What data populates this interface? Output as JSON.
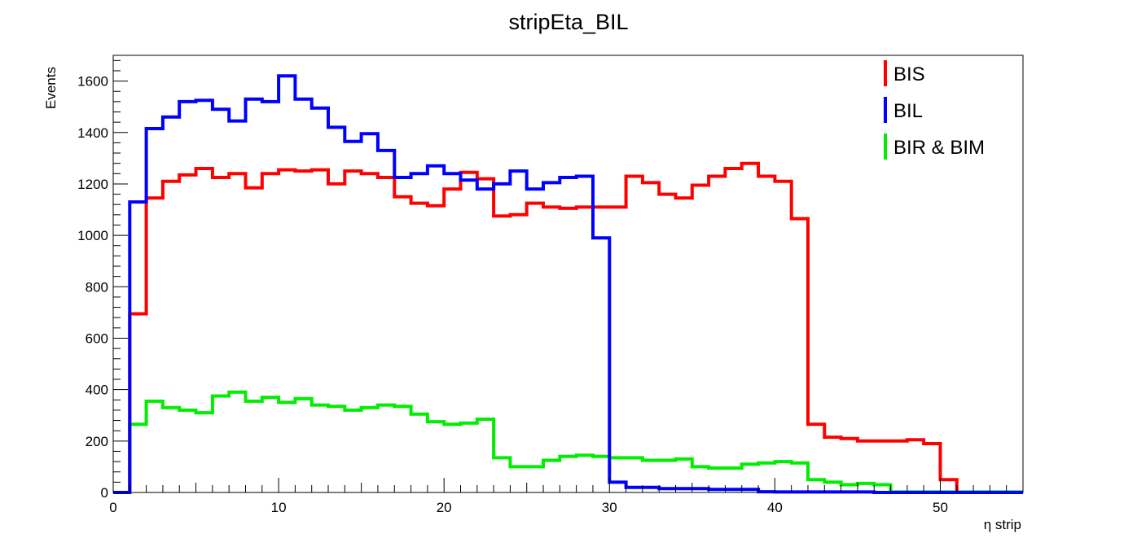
{
  "chart_data": {
    "type": "line",
    "style": "step-histogram",
    "title": "stripEta_BIL",
    "xlabel": "η strip",
    "ylabel": "Events",
    "xlim": [
      0,
      55
    ],
    "ylim": [
      0,
      1700
    ],
    "x_ticks": [
      0,
      10,
      20,
      30,
      40,
      50
    ],
    "y_ticks": [
      0,
      200,
      400,
      600,
      800,
      1000,
      1200,
      1400,
      1600
    ],
    "grid": false,
    "legend": "top-right",
    "bin_edges_start": 0,
    "bin_width": 1,
    "series": [
      {
        "name": "BIS",
        "color": "#ff0000",
        "values": [
          0,
          695,
          1145,
          1210,
          1235,
          1260,
          1225,
          1240,
          1185,
          1240,
          1255,
          1250,
          1255,
          1200,
          1250,
          1240,
          1225,
          1150,
          1125,
          1115,
          1180,
          1245,
          1220,
          1075,
          1080,
          1125,
          1110,
          1105,
          1110,
          1110,
          1110,
          1230,
          1205,
          1160,
          1145,
          1195,
          1230,
          1260,
          1280,
          1230,
          1210,
          1065,
          265,
          215,
          210,
          200,
          200,
          200,
          205,
          190,
          50,
          0,
          0,
          0,
          0
        ]
      },
      {
        "name": "BIL",
        "color": "#0000ff",
        "values": [
          0,
          1130,
          1415,
          1460,
          1520,
          1525,
          1490,
          1445,
          1530,
          1520,
          1620,
          1530,
          1495,
          1420,
          1365,
          1395,
          1330,
          1225,
          1240,
          1270,
          1240,
          1215,
          1180,
          1200,
          1250,
          1180,
          1205,
          1225,
          1230,
          990,
          40,
          20,
          20,
          15,
          15,
          15,
          12,
          12,
          12,
          3,
          2,
          2,
          2,
          2,
          2,
          2,
          0,
          0,
          0,
          0,
          0,
          0,
          0,
          0,
          0
        ]
      },
      {
        "name": "BIR & BIM",
        "color": "#00ee00",
        "values": [
          0,
          265,
          355,
          330,
          320,
          310,
          375,
          390,
          355,
          370,
          350,
          365,
          340,
          335,
          320,
          330,
          340,
          335,
          305,
          275,
          265,
          270,
          285,
          135,
          100,
          100,
          125,
          140,
          145,
          140,
          135,
          135,
          125,
          125,
          130,
          100,
          95,
          95,
          110,
          115,
          120,
          115,
          50,
          40,
          30,
          35,
          30,
          2,
          2,
          2,
          2,
          2,
          2,
          2,
          2
        ]
      }
    ]
  }
}
